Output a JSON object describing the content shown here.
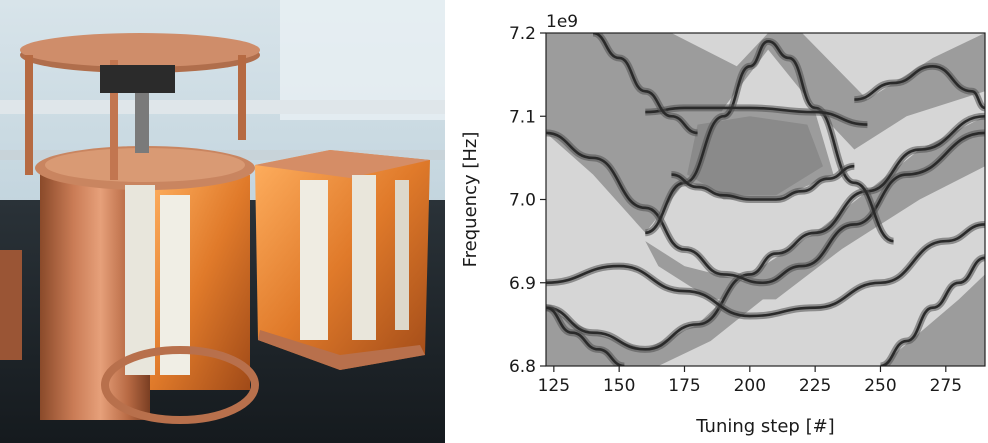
{
  "figure": {
    "left_panel": "photo",
    "right_panel": "spectral-map"
  },
  "chart_data": {
    "type": "heatmap",
    "xlabel": "Tuning step [#]",
    "ylabel": "Frequency [Hz]",
    "y_offset_label": "1e9",
    "xlim": [
      122,
      290
    ],
    "ylim": [
      6.8,
      7.2
    ],
    "xticks": [
      125,
      150,
      175,
      200,
      225,
      250,
      275
    ],
    "yticks": [
      6.8,
      6.9,
      7.0,
      7.1,
      7.2
    ],
    "xtick_labels": [
      "125",
      "150",
      "175",
      "200",
      "225",
      "250",
      "275"
    ],
    "ytick_labels": [
      "6.8",
      "6.9",
      "7.0",
      "7.1",
      "7.2"
    ],
    "colormap": "greyscale",
    "colors": {
      "background": "#d6d6d6",
      "mid": "#9c9c9c",
      "dark": "#505050",
      "line": "#2a2a2a"
    },
    "mode_lines": [
      {
        "x": [
          122,
          140,
          160,
          180,
          200,
          210,
          225,
          245,
          265,
          290
        ],
        "y": [
          6.87,
          6.84,
          6.82,
          6.85,
          6.91,
          6.935,
          6.96,
          7.01,
          7.06,
          7.1
        ]
      },
      {
        "x": [
          122,
          140,
          160,
          175,
          190,
          205,
          220,
          240,
          260,
          290
        ],
        "y": [
          7.08,
          7.05,
          6.99,
          6.94,
          6.91,
          6.9,
          6.92,
          6.97,
          7.03,
          7.08
        ]
      },
      {
        "x": [
          160,
          175,
          190,
          200,
          207,
          215,
          225,
          240,
          255
        ],
        "y": [
          6.96,
          7.02,
          7.1,
          7.16,
          7.19,
          7.17,
          7.11,
          7.02,
          6.95
        ]
      },
      {
        "x": [
          170,
          180,
          190,
          200,
          210,
          220,
          230,
          240
        ],
        "y": [
          7.03,
          7.015,
          7.005,
          7.0,
          7.0,
          7.01,
          7.025,
          7.04
        ]
      },
      {
        "x": [
          160,
          175,
          200,
          225,
          245
        ],
        "y": [
          7.105,
          7.11,
          7.11,
          7.105,
          7.09
        ]
      },
      {
        "x": [
          122,
          150,
          175,
          200,
          225,
          250,
          275,
          290
        ],
        "y": [
          6.9,
          6.92,
          6.89,
          6.86,
          6.87,
          6.9,
          6.95,
          6.97
        ]
      },
      {
        "x": [
          250,
          260,
          270,
          280,
          290
        ],
        "y": [
          6.8,
          6.83,
          6.87,
          6.9,
          6.93
        ]
      },
      {
        "x": [
          122,
          132,
          142,
          152
        ],
        "y": [
          6.87,
          6.84,
          6.82,
          6.8
        ]
      },
      {
        "x": [
          140,
          150,
          160,
          170,
          180
        ],
        "y": [
          7.2,
          7.17,
          7.13,
          7.1,
          7.08
        ]
      },
      {
        "x": [
          240,
          255,
          270,
          285,
          290
        ],
        "y": [
          7.12,
          7.14,
          7.16,
          7.13,
          7.11
        ]
      }
    ]
  }
}
